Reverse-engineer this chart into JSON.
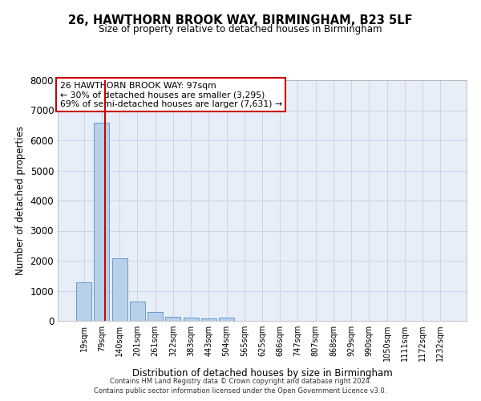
{
  "title_line1": "26, HAWTHORN BROOK WAY, BIRMINGHAM, B23 5LF",
  "title_line2": "Size of property relative to detached houses in Birmingham",
  "xlabel": "Distribution of detached houses by size in Birmingham",
  "ylabel": "Number of detached properties",
  "categories": [
    "19sqm",
    "79sqm",
    "140sqm",
    "201sqm",
    "261sqm",
    "322sqm",
    "383sqm",
    "443sqm",
    "504sqm",
    "565sqm",
    "625sqm",
    "686sqm",
    "747sqm",
    "807sqm",
    "868sqm",
    "929sqm",
    "990sqm",
    "1050sqm",
    "1111sqm",
    "1172sqm",
    "1232sqm"
  ],
  "values": [
    1290,
    6600,
    2070,
    650,
    285,
    130,
    95,
    80,
    115,
    0,
    0,
    0,
    0,
    0,
    0,
    0,
    0,
    0,
    0,
    0,
    0
  ],
  "bar_color": "#b8d0ea",
  "bar_edge_color": "#6699cc",
  "vline_x": 1.2,
  "vline_color": "#cc0000",
  "annotation_text_line1": "26 HAWTHORN BROOK WAY: 97sqm",
  "annotation_text_line2": "← 30% of detached houses are smaller (3,295)",
  "annotation_text_line3": "69% of semi-detached houses are larger (7,631) →",
  "annotation_box_color": "#ffffff",
  "annotation_box_edge": "#cc0000",
  "grid_color": "#c8d4e8",
  "background_color": "#e8eef8",
  "ylim": [
    0,
    8000
  ],
  "yticks": [
    0,
    1000,
    2000,
    3000,
    4000,
    5000,
    6000,
    7000,
    8000
  ],
  "footer_line1": "Contains HM Land Registry data © Crown copyright and database right 2024.",
  "footer_line2": "Contains public sector information licensed under the Open Government Licence v3.0."
}
